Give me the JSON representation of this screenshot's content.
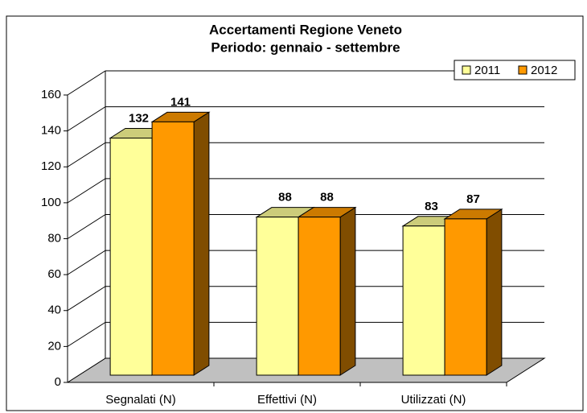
{
  "chart_data": {
    "type": "bar3d",
    "title": "Accertamenti Regione Veneto",
    "subtitle": "Periodo: gennaio - settembre",
    "categories": [
      "Segnalati (N)",
      "Effettivi (N)",
      "Utilizzati (N)"
    ],
    "series": [
      {
        "name": "2011",
        "color": "#ffff99",
        "values": [
          132,
          88,
          83
        ]
      },
      {
        "name": "2012",
        "color": "#ff9900",
        "values": [
          141,
          88,
          87
        ]
      }
    ],
    "ylim": [
      0,
      160
    ],
    "yticks": [
      0,
      20,
      40,
      60,
      80,
      100,
      120,
      140,
      160
    ],
    "grid": true,
    "legend": "top-right"
  }
}
